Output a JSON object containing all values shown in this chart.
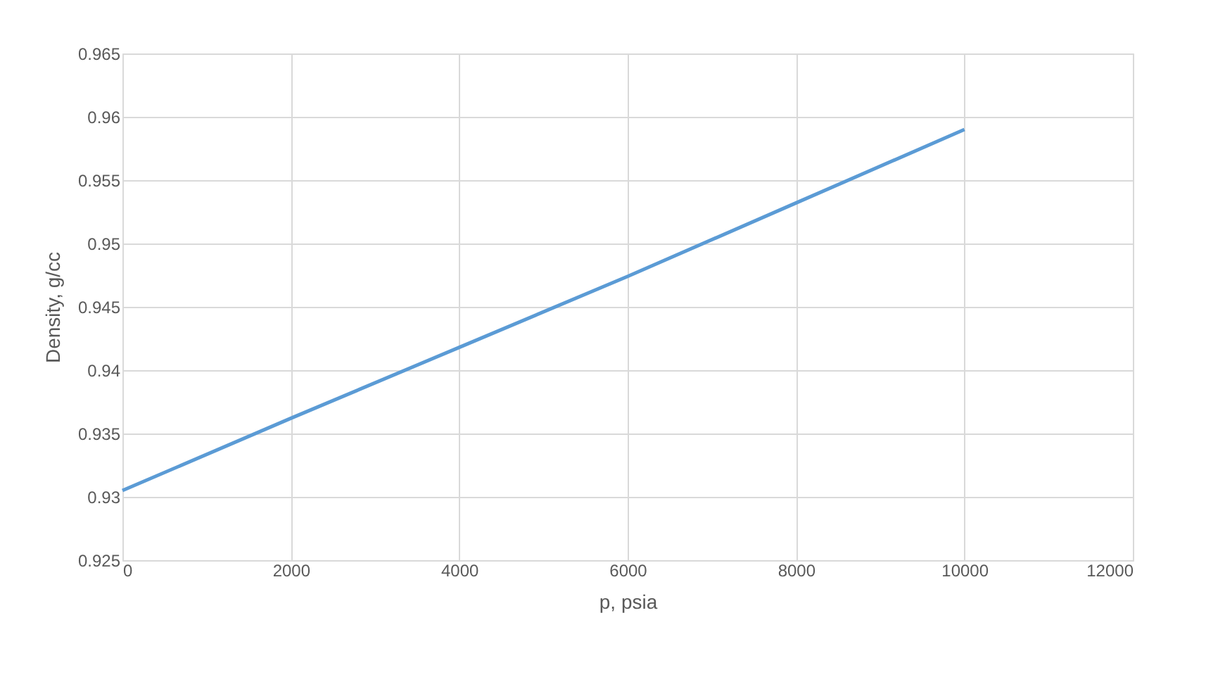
{
  "chart_data": {
    "type": "line",
    "xlabel": "p, psia",
    "ylabel": "Density, g/cc",
    "x": [
      0,
      2000,
      4000,
      6000,
      8000,
      10000
    ],
    "series": [
      {
        "color": "#5b9bd5",
        "values": [
          0.9305,
          0.9362,
          0.9418,
          0.9474,
          0.9532,
          0.959
        ]
      }
    ],
    "xlim": [
      0,
      12000
    ],
    "xticks": [
      0,
      2000,
      4000,
      6000,
      8000,
      10000,
      12000
    ],
    "ylim": [
      0.925,
      0.965
    ],
    "yticks": [
      0.925,
      0.93,
      0.935,
      0.94,
      0.945,
      0.95,
      0.955,
      0.96,
      0.965
    ],
    "grid": true,
    "marker": "none",
    "line_style": "solid"
  }
}
